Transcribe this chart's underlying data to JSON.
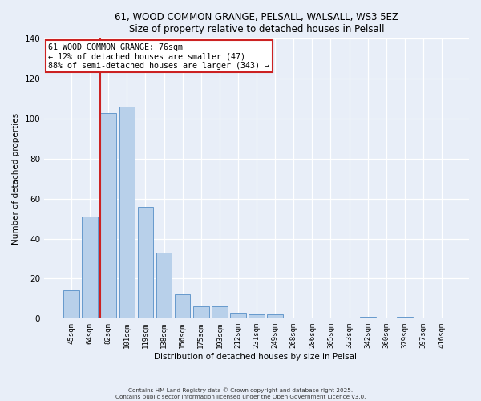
{
  "title": "61, WOOD COMMON GRANGE, PELSALL, WALSALL, WS3 5EZ",
  "subtitle": "Size of property relative to detached houses in Pelsall",
  "xlabel": "Distribution of detached houses by size in Pelsall",
  "ylabel": "Number of detached properties",
  "bar_labels": [
    "45sqm",
    "64sqm",
    "82sqm",
    "101sqm",
    "119sqm",
    "138sqm",
    "156sqm",
    "175sqm",
    "193sqm",
    "212sqm",
    "231sqm",
    "249sqm",
    "268sqm",
    "286sqm",
    "305sqm",
    "323sqm",
    "342sqm",
    "360sqm",
    "379sqm",
    "397sqm",
    "416sqm"
  ],
  "bar_values": [
    14,
    51,
    103,
    106,
    56,
    33,
    12,
    6,
    6,
    3,
    2,
    2,
    0,
    0,
    0,
    0,
    1,
    0,
    1,
    0,
    0
  ],
  "bar_color": "#b8d0ea",
  "bar_edge_color": "#6699cc",
  "ylim": [
    0,
    140
  ],
  "yticks": [
    0,
    20,
    40,
    60,
    80,
    100,
    120,
    140
  ],
  "vline_color": "#cc2222",
  "annotation_title": "61 WOOD COMMON GRANGE: 76sqm",
  "annotation_line1": "← 12% of detached houses are smaller (47)",
  "annotation_line2": "88% of semi-detached houses are larger (343) →",
  "annotation_box_color": "white",
  "annotation_box_edge": "#cc2222",
  "footnote1": "Contains HM Land Registry data © Crown copyright and database right 2025.",
  "footnote2": "Contains public sector information licensed under the Open Government Licence v3.0.",
  "background_color": "#e8eef8"
}
